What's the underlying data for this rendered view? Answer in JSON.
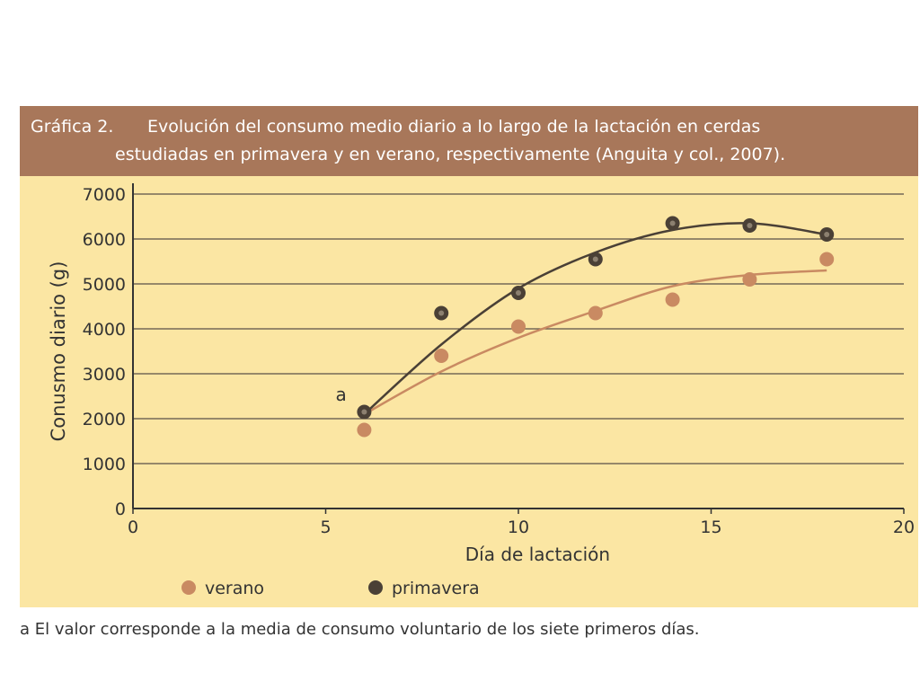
{
  "figure": {
    "number_label": "Gráfica 2.",
    "title_line1": "Evolución del consumo medio diario a lo largo de la lactación en cerdas",
    "title_line2": "estudiadas en primavera y en verano, respectivamente (Anguita y col., 2007)."
  },
  "footnote": "a El valor corresponde a la media de consumo voluntario de los siete primeros días.",
  "colors": {
    "header": "#a8775a",
    "background": "#fbe6a3",
    "verano": "#c98a62",
    "primavera": "#4a4036"
  },
  "chart_data": {
    "type": "scatter",
    "xlabel": "Día de lactación",
    "ylabel": "Conusmo diario (g)",
    "xlim": [
      0,
      20
    ],
    "ylim": [
      0,
      7000
    ],
    "xticks": [
      0,
      5,
      10,
      15,
      20
    ],
    "yticks": [
      0,
      1000,
      2000,
      3000,
      4000,
      5000,
      6000,
      7000
    ],
    "grid": "horizontal",
    "legend_position": "bottom",
    "annotation": {
      "text": "a",
      "x": 5.4,
      "y": 2400
    },
    "series": [
      {
        "name": "verano",
        "x": [
          6,
          8,
          10,
          12,
          14,
          16,
          18
        ],
        "y": [
          1750,
          3400,
          4050,
          4350,
          4650,
          5100,
          5550
        ],
        "trend": [
          [
            6,
            2100
          ],
          [
            8,
            3050
          ],
          [
            10,
            3800
          ],
          [
            12,
            4400
          ],
          [
            14,
            4950
          ],
          [
            16,
            5200
          ],
          [
            18,
            5300
          ]
        ]
      },
      {
        "name": "primavera",
        "x": [
          6,
          8,
          10,
          12,
          14,
          16,
          18
        ],
        "y": [
          2150,
          4350,
          4800,
          5550,
          6350,
          6300,
          6100
        ],
        "trend": [
          [
            6,
            2100
          ],
          [
            8,
            3650
          ],
          [
            10,
            4900
          ],
          [
            12,
            5700
          ],
          [
            14,
            6200
          ],
          [
            16,
            6350
          ],
          [
            18,
            6100
          ]
        ]
      }
    ]
  }
}
